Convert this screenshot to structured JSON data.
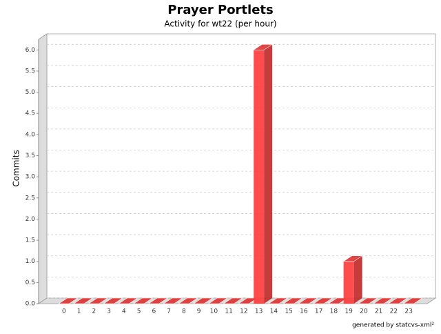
{
  "chart_data": {
    "type": "bar3d",
    "title": "Prayer Portlets",
    "subtitle": "Activity for wt22 (per hour)",
    "y_label": "Commits",
    "footer": "generated by statcvs-xml²",
    "categories": [
      "0",
      "1",
      "2",
      "3",
      "4",
      "5",
      "6",
      "7",
      "8",
      "9",
      "10",
      "11",
      "12",
      "13",
      "14",
      "15",
      "16",
      "17",
      "18",
      "19",
      "20",
      "21",
      "22",
      "23"
    ],
    "values": [
      0,
      0,
      0,
      0,
      0,
      0,
      0,
      0,
      0,
      0,
      0,
      0,
      0,
      6,
      0,
      0,
      0,
      0,
      0,
      1,
      0,
      0,
      0,
      0
    ],
    "color": "#ff3a3a",
    "ylim": [
      0,
      6.25
    ],
    "yticks": [
      {
        "value": 0,
        "label": "0.0"
      },
      {
        "value": 0.5,
        "label": "0.5"
      },
      {
        "value": 1,
        "label": "1.0"
      },
      {
        "value": 1.5,
        "label": "1.5"
      },
      {
        "value": 2,
        "label": "2.0"
      },
      {
        "value": 2.5,
        "label": "2.5"
      },
      {
        "value": 3,
        "label": "3.0"
      },
      {
        "value": 3.5,
        "label": "3.5"
      },
      {
        "value": 4,
        "label": "4.0"
      },
      {
        "value": 4.5,
        "label": "4.5"
      },
      {
        "value": 5,
        "label": "5.0"
      },
      {
        "value": 5.5,
        "label": "5.5"
      },
      {
        "value": 6,
        "label": "6.0"
      }
    ],
    "grid": true
  }
}
